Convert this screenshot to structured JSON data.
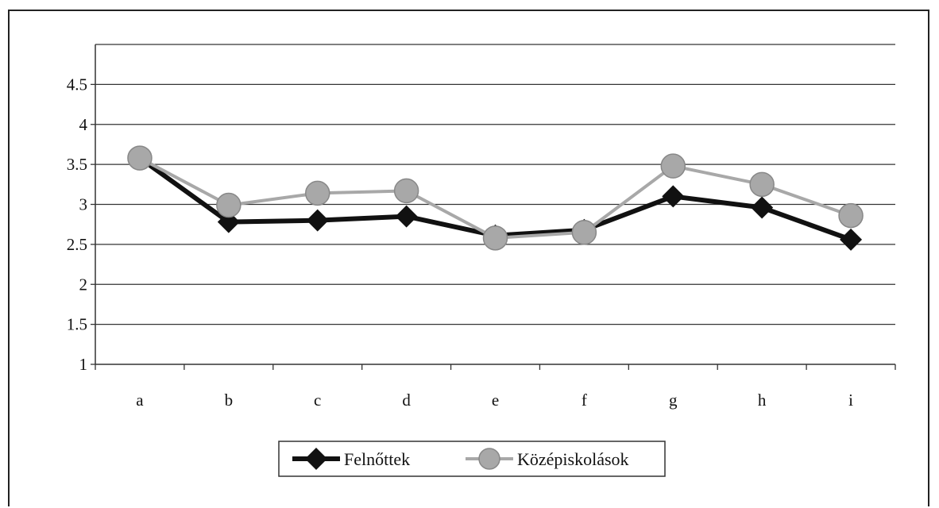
{
  "chart_data": {
    "type": "line",
    "categories": [
      "a",
      "b",
      "c",
      "d",
      "e",
      "f",
      "g",
      "h",
      "i"
    ],
    "series": [
      {
        "name": "Felnőttek",
        "values": [
          3.58,
          2.78,
          2.8,
          2.85,
          2.61,
          2.68,
          3.1,
          2.96,
          2.56
        ],
        "color": "#111111",
        "marker": "diamond"
      },
      {
        "name": "Középiskolások",
        "values": [
          3.58,
          2.99,
          3.14,
          3.17,
          2.58,
          2.65,
          3.48,
          3.25,
          2.86
        ],
        "color": "#a8a8a8",
        "marker": "circle"
      }
    ],
    "ylim": [
      1,
      5
    ],
    "yticks": [
      "1",
      "1.5",
      "2",
      "2.5",
      "3",
      "3.5",
      "4",
      "4.5"
    ],
    "grid": true,
    "legend_position": "bottom-center"
  }
}
